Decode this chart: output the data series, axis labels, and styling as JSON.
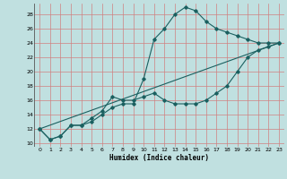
{
  "xlabel": "Humidex (Indice chaleur)",
  "bg_color": "#c0e0e0",
  "grid_color": "#d08080",
  "line_color": "#1a6060",
  "xlim": [
    -0.5,
    23.5
  ],
  "ylim": [
    9.5,
    29.5
  ],
  "yticks": [
    10,
    12,
    14,
    16,
    18,
    20,
    22,
    24,
    26,
    28
  ],
  "xticks": [
    0,
    1,
    2,
    3,
    4,
    5,
    6,
    7,
    8,
    9,
    10,
    11,
    12,
    13,
    14,
    15,
    16,
    17,
    18,
    19,
    20,
    21,
    22,
    23
  ],
  "line1_x": [
    0,
    1,
    2,
    3,
    4,
    5,
    6,
    7,
    8,
    9,
    10,
    11,
    12,
    13,
    14,
    15,
    16,
    17,
    18,
    19,
    20,
    21,
    22,
    23
  ],
  "line1_y": [
    12,
    10.5,
    11,
    12.5,
    12.5,
    13,
    14,
    15,
    15.5,
    15.5,
    19,
    24.5,
    26,
    28,
    29,
    28.5,
    27,
    26,
    25.5,
    25,
    24.5,
    24,
    24,
    24
  ],
  "line2_x": [
    0,
    1,
    2,
    3,
    4,
    5,
    6,
    7,
    8,
    9,
    10,
    11,
    12,
    13,
    14,
    15,
    16,
    17,
    18,
    19,
    20,
    21,
    22,
    23
  ],
  "line2_y": [
    12,
    10.5,
    11,
    12.5,
    12.5,
    13.5,
    14.5,
    16.5,
    16,
    16,
    16.5,
    17,
    16,
    15.5,
    15.5,
    15.5,
    16,
    17,
    18,
    20,
    22,
    23,
    23.5,
    24
  ],
  "line3_x": [
    0,
    23
  ],
  "line3_y": [
    12,
    24
  ]
}
